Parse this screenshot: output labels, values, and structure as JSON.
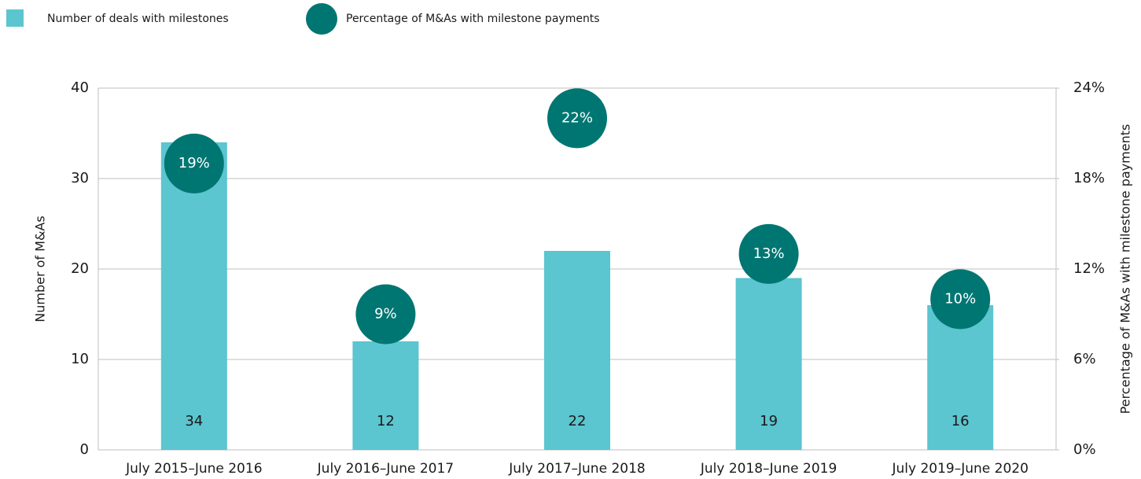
{
  "chart_data": {
    "type": "bar",
    "categories": [
      "July 2015–June 2016",
      "July 2016–June 2017",
      "July 2017–June 2018",
      "July 2018–June 2019",
      "July 2019–June 2020"
    ],
    "series": [
      {
        "name": "Number of deals with milestones",
        "type": "bar",
        "color": "#5bc5d0",
        "values": [
          34,
          12,
          22,
          19,
          16
        ]
      },
      {
        "name": "Percentage of M&As with milestone payments",
        "type": "scatter",
        "axis": "y2",
        "color": "#007672",
        "values": [
          19,
          9,
          22,
          13,
          10
        ],
        "value_labels": [
          "19%",
          "9%",
          "22%",
          "13%",
          "10%"
        ]
      }
    ],
    "y_label": "Number of M&As",
    "y2_label": "Percentage of M&As with milestone payments",
    "ylim": [
      0,
      40
    ],
    "yticks": [
      0,
      10,
      20,
      30,
      40
    ],
    "y2lim": [
      0,
      24
    ],
    "y2ticks": [
      {
        "value": 0,
        "label": "0%"
      },
      {
        "value": 6,
        "label": "6%"
      },
      {
        "value": 12,
        "label": "12%"
      },
      {
        "value": 18,
        "label": "18%"
      },
      {
        "value": 24,
        "label": "24%"
      }
    ],
    "grid": true,
    "legend": "top-left"
  }
}
